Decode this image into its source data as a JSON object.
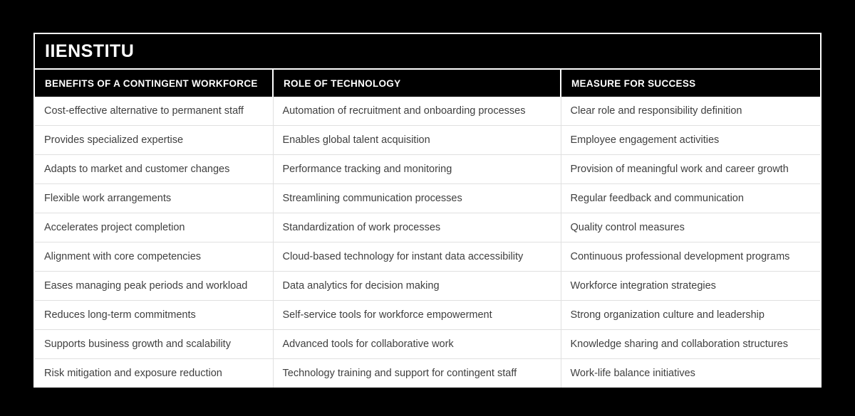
{
  "colors": {
    "page_bg": "#000000",
    "card_border": "#ffffff",
    "title_bg": "#000000",
    "title_text": "#ffffff",
    "header_bg": "#000000",
    "header_text": "#ffffff",
    "body_bg": "#ffffff",
    "body_text": "#3f3f3f",
    "divider": "#e0e0e0"
  },
  "chart_data": {
    "type": "table",
    "title": "IIENSTITU",
    "columns": [
      "BENEFITS OF A CONTINGENT WORKFORCE",
      "ROLE OF TECHNOLOGY",
      "MEASURE FOR SUCCESS"
    ],
    "rows": [
      [
        "Cost-effective alternative to permanent staff",
        "Automation of recruitment and onboarding processes",
        "Clear role and responsibility definition"
      ],
      [
        "Provides specialized expertise",
        "Enables global talent acquisition",
        "Employee engagement activities"
      ],
      [
        "Adapts to market and customer changes",
        "Performance tracking and monitoring",
        "Provision of meaningful work and career growth"
      ],
      [
        "Flexible work arrangements",
        "Streamlining communication processes",
        "Regular feedback and communication"
      ],
      [
        "Accelerates project completion",
        "Standardization of work processes",
        "Quality control measures"
      ],
      [
        "Alignment with core competencies",
        "Cloud-based technology for instant data accessibility",
        "Continuous professional development programs"
      ],
      [
        "Eases managing peak periods and workload",
        "Data analytics for decision making",
        "Workforce integration strategies"
      ],
      [
        "Reduces long-term commitments",
        "Self-service tools for workforce empowerment",
        "Strong organization culture and leadership"
      ],
      [
        "Supports business growth and scalability",
        "Advanced tools for collaborative work",
        "Knowledge sharing and collaboration structures"
      ],
      [
        "Risk mitigation and exposure reduction",
        "Technology training and support for contingent staff",
        "Work-life balance initiatives"
      ]
    ]
  }
}
